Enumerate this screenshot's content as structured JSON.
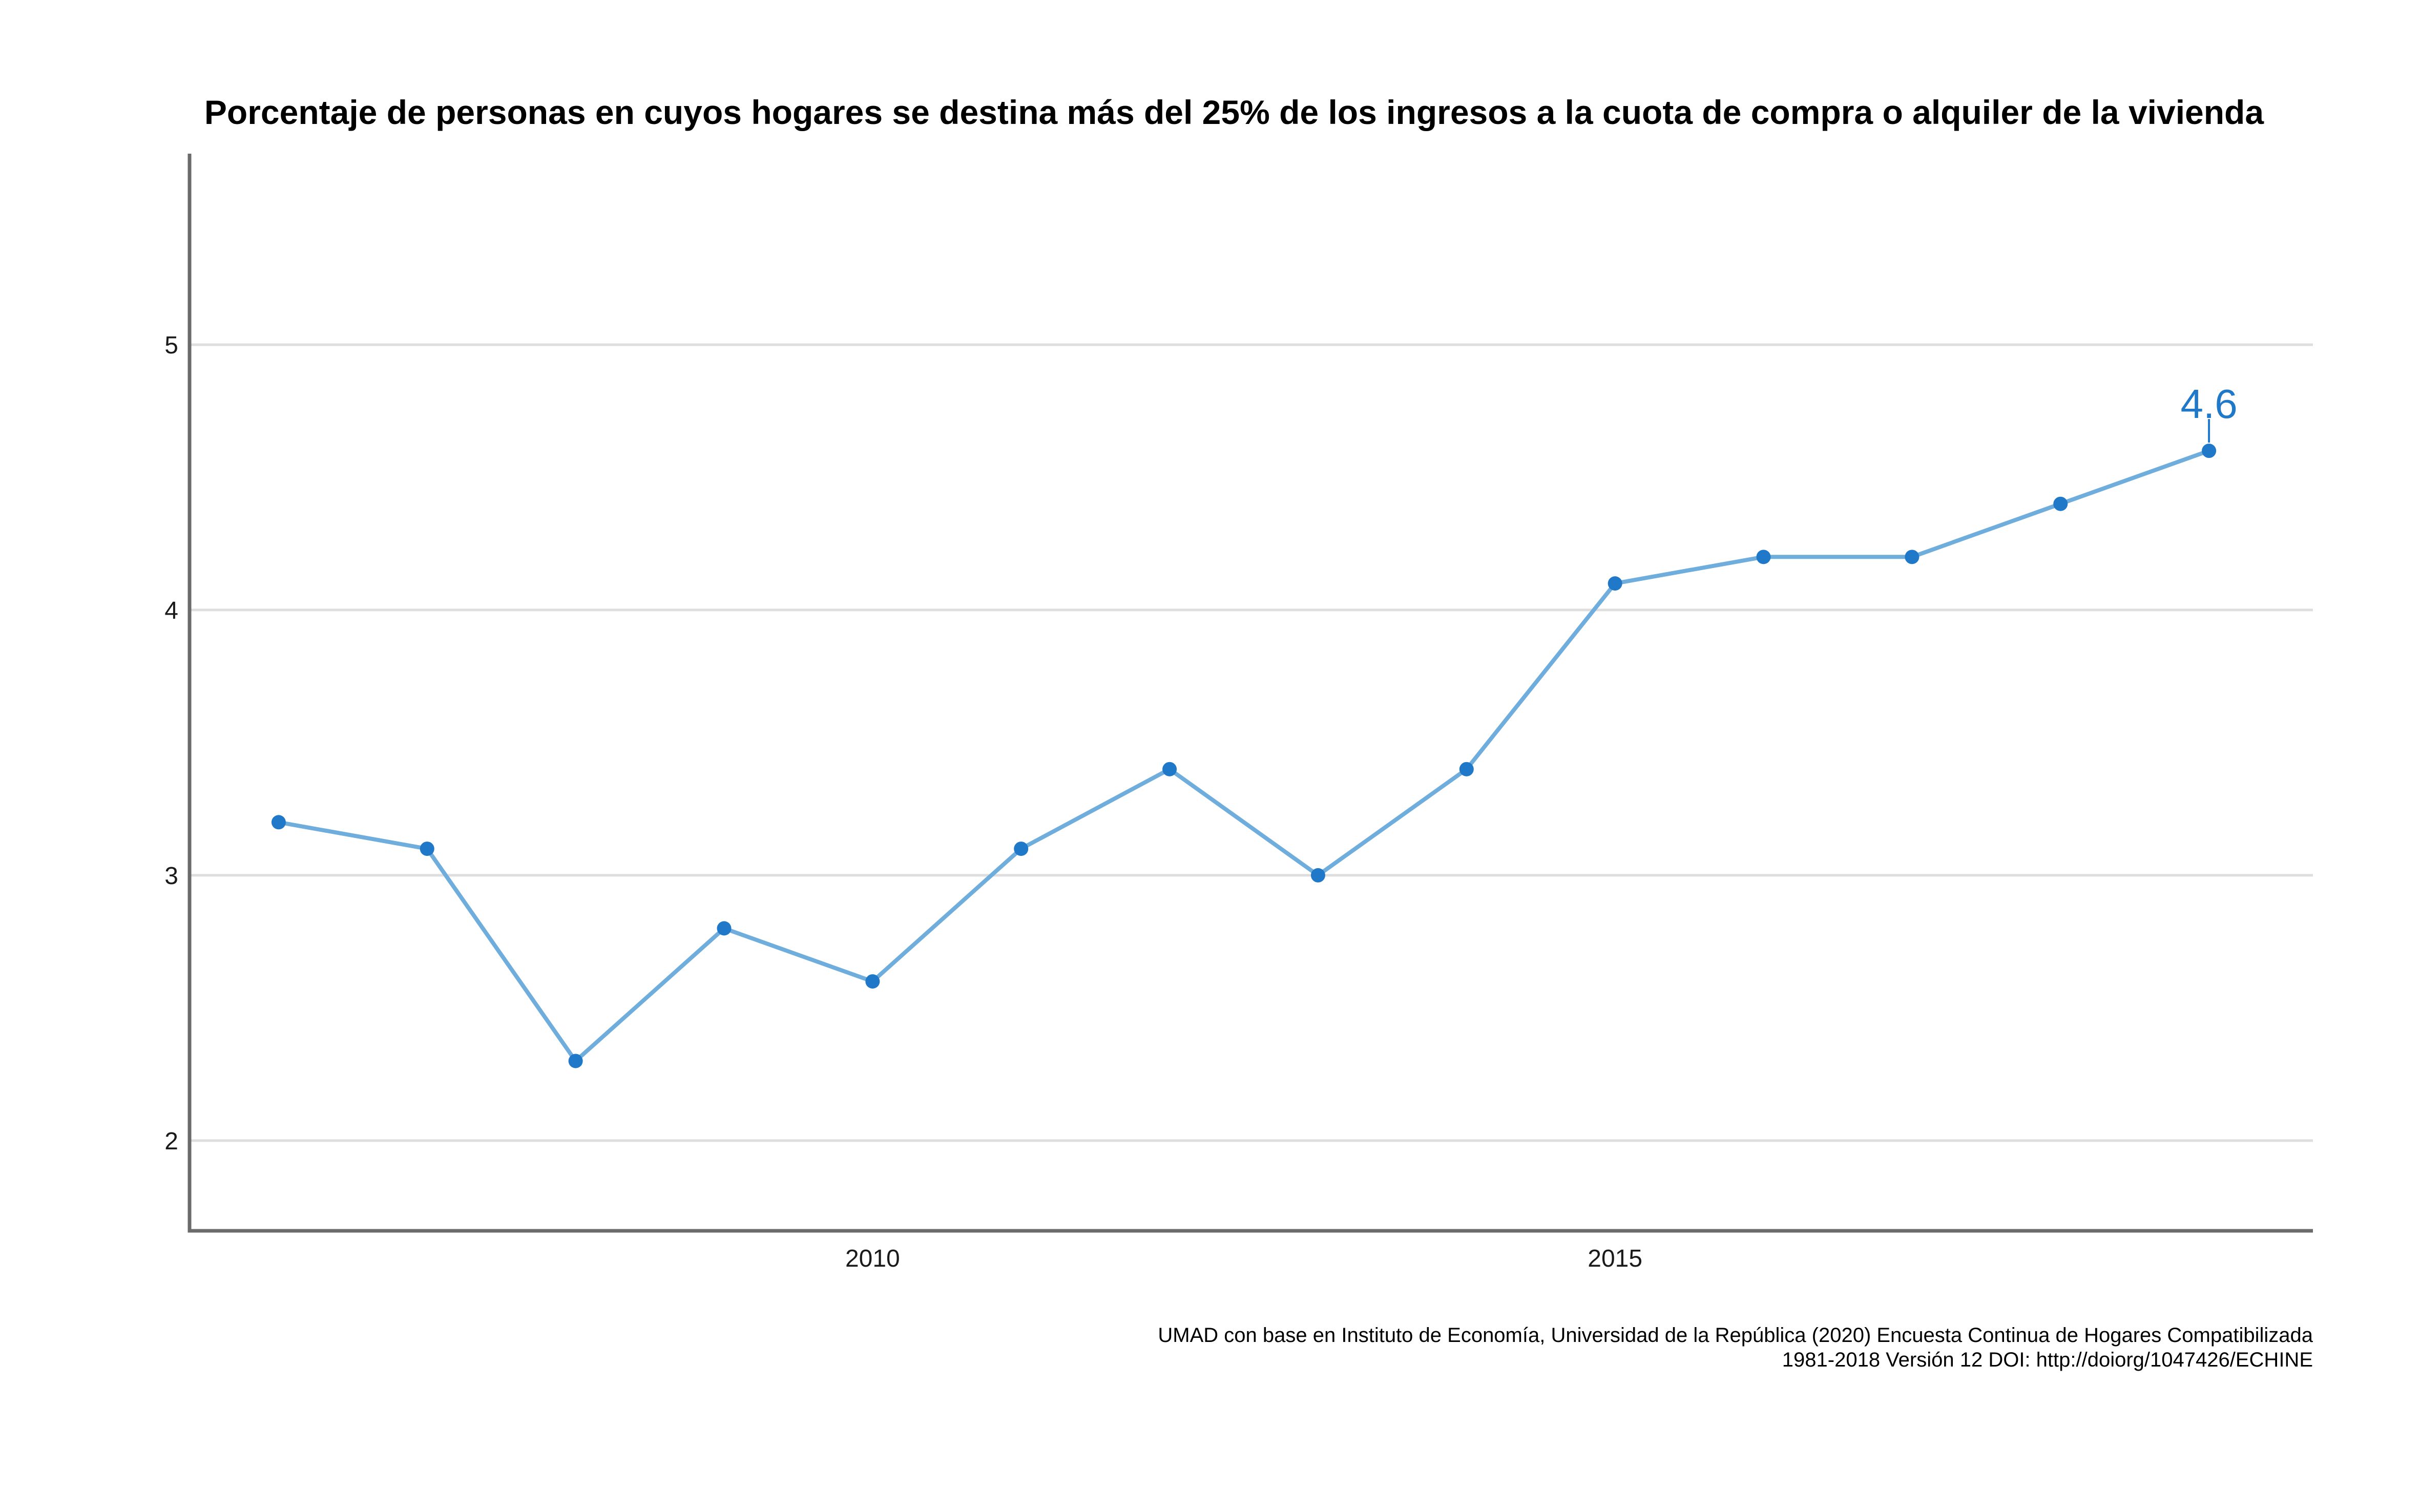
{
  "chart_data": {
    "type": "line",
    "title": "Porcentaje de personas en cuyos hogares se destina más del 25% de los ingresos a la cuota de compra o alquiler de la vivienda",
    "xlabel": "",
    "ylabel": "",
    "x": [
      2006,
      2007,
      2008,
      2009,
      2010,
      2011,
      2012,
      2013,
      2014,
      2015,
      2016,
      2017,
      2018,
      2019
    ],
    "series": [
      {
        "values": [
          3.2,
          3.1,
          2.3,
          2.8,
          2.6,
          3.1,
          3.4,
          3.0,
          3.4,
          4.1,
          4.2,
          4.2,
          4.4,
          4.6
        ]
      }
    ],
    "xlim": [
      2005.4,
      2019.7
    ],
    "ylim": [
      1.66,
      5.72
    ],
    "xticks": [
      2010,
      2015
    ],
    "xtick_labels": [
      "2010",
      "2015"
    ],
    "yticks": [
      2,
      3,
      4,
      5
    ],
    "ytick_labels": [
      "2",
      "3",
      "4",
      "5"
    ],
    "grid": "horizontal",
    "legend": "none",
    "annotations": [
      {
        "x": 2019,
        "y": 4.6,
        "text": "4.6"
      }
    ],
    "caption": [
      "UMAD con base en Instituto de Economía, Universidad de la República (2020) Encuesta Continua de Hogares Compatibilizada ",
      "1981-2018 Versión 12 DOI: http://doiorg/1047426/ECHINE"
    ],
    "colors": {
      "line": "#6EADDC",
      "point": "#1F78C8",
      "label": "#1F78C8",
      "grid": "#DEDEDE",
      "axis": "#6B6B6B"
    }
  }
}
